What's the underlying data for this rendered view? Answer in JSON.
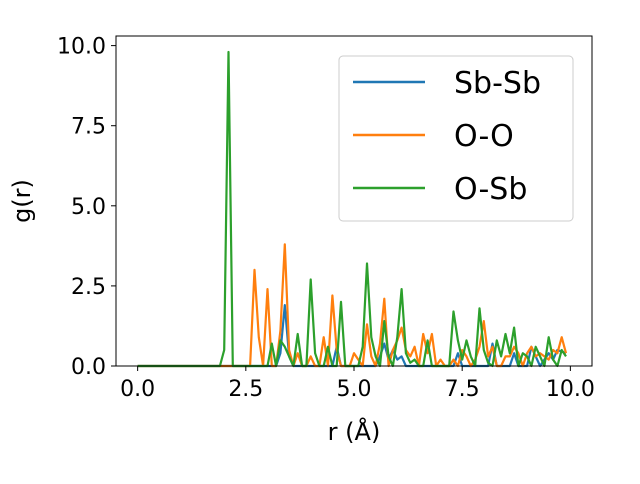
{
  "chart_data": {
    "type": "line",
    "xlabel": "r (Å)",
    "ylabel": "g(r)",
    "xlim": [
      -0.5,
      10.5
    ],
    "ylim": [
      0,
      10.3
    ],
    "xticks": [
      "0.0",
      "2.5",
      "5.0",
      "7.5",
      "10.0"
    ],
    "yticks": [
      "0.0",
      "2.5",
      "5.0",
      "7.5",
      "10.0"
    ],
    "grid": false,
    "legend_position": "top-right",
    "colors": {
      "Sb-Sb": "#1f77b4",
      "O-O": "#ff7f0e",
      "O-Sb": "#2ca02c"
    },
    "series": [
      {
        "name": "Sb-Sb",
        "x": [
          0,
          3.2,
          3.3,
          3.4,
          3.5,
          3.6,
          4.5,
          4.6,
          4.7,
          5.5,
          5.6,
          5.7,
          5.8,
          5.9,
          6.0,
          6.1,
          6.2,
          7.3,
          7.4,
          7.5,
          8.1,
          8.2,
          8.3,
          8.6,
          8.7,
          8.8,
          9.0,
          9.1,
          9.2,
          9.3,
          9.5,
          9.6,
          9.7,
          9.9
        ],
        "y": [
          0,
          0,
          0.4,
          1.9,
          0.3,
          0,
          0,
          0.6,
          0,
          0,
          0.3,
          0.7,
          0.2,
          0.5,
          0.2,
          0.3,
          0,
          0,
          0.4,
          0,
          0,
          0.7,
          0,
          0,
          0.4,
          0,
          0,
          0.6,
          0.3,
          0,
          0.4,
          0.2,
          0.5,
          0.4
        ]
      },
      {
        "name": "O-O",
        "x": [
          0,
          2.6,
          2.7,
          2.8,
          2.9,
          3.0,
          3.1,
          3.2,
          3.3,
          3.4,
          3.5,
          3.6,
          3.7,
          3.8,
          3.9,
          4.0,
          4.1,
          4.2,
          4.3,
          4.4,
          4.5,
          4.6,
          4.7,
          4.8,
          4.9,
          5.0,
          5.1,
          5.2,
          5.3,
          5.4,
          5.5,
          5.6,
          5.7,
          5.8,
          5.9,
          6.0,
          6.1,
          6.2,
          6.3,
          6.4,
          6.5,
          6.6,
          6.7,
          6.8,
          6.9,
          7.0,
          7.1,
          7.2,
          7.3,
          7.4,
          7.5,
          7.6,
          7.7,
          7.8,
          7.9,
          8.0,
          8.1,
          8.2,
          8.3,
          8.4,
          8.5,
          8.6,
          8.7,
          8.8,
          8.9,
          9.0,
          9.1,
          9.2,
          9.3,
          9.4,
          9.5,
          9.6,
          9.7,
          9.8,
          9.9
        ],
        "y": [
          0,
          0,
          3.0,
          0.9,
          0,
          2.4,
          0,
          0,
          1.1,
          3.8,
          0.5,
          0,
          0.4,
          0,
          0,
          0.3,
          0,
          0,
          0.9,
          0,
          2.2,
          0.5,
          0,
          0,
          0,
          0.4,
          0.2,
          0,
          1.3,
          0.3,
          0,
          0.7,
          2.1,
          0,
          0.5,
          0.8,
          1.2,
          0.5,
          0.3,
          0.6,
          0,
          1.0,
          0.4,
          1.0,
          0,
          0.2,
          0,
          0,
          0.2,
          0,
          0.5,
          0.3,
          0,
          0.2,
          0.6,
          1.4,
          0.3,
          0.6,
          0,
          0,
          0.3,
          0.3,
          0.6,
          0.4,
          0,
          0.4,
          0.6,
          0.3,
          0.4,
          0.3,
          0.2,
          0.5,
          0.4,
          0.9,
          0.4
        ]
      },
      {
        "name": "O-Sb",
        "x": [
          0,
          1.9,
          2.0,
          2.1,
          2.2,
          2.3,
          2.4,
          2.5,
          2.6,
          2.7,
          2.8,
          2.9,
          3.0,
          3.1,
          3.2,
          3.3,
          3.4,
          3.5,
          3.6,
          3.7,
          3.8,
          3.9,
          4.0,
          4.1,
          4.2,
          4.3,
          4.4,
          4.5,
          4.6,
          4.7,
          4.8,
          4.9,
          5.0,
          5.1,
          5.2,
          5.3,
          5.4,
          5.5,
          5.6,
          5.7,
          5.8,
          5.9,
          6.0,
          6.1,
          6.2,
          6.3,
          6.4,
          6.5,
          6.6,
          6.7,
          6.8,
          6.9,
          7.0,
          7.1,
          7.2,
          7.3,
          7.4,
          7.5,
          7.6,
          7.7,
          7.8,
          7.9,
          8.0,
          8.1,
          8.2,
          8.3,
          8.4,
          8.5,
          8.6,
          8.7,
          8.8,
          8.9,
          9.0,
          9.1,
          9.2,
          9.3,
          9.4,
          9.5,
          9.6,
          9.7,
          9.8,
          9.9
        ],
        "y": [
          0,
          0,
          0.5,
          9.8,
          0,
          0,
          0,
          0,
          0,
          0,
          0,
          0,
          0,
          0.7,
          0,
          0.8,
          0.6,
          0.3,
          0,
          1.0,
          0,
          0,
          2.7,
          0.4,
          0,
          0,
          0.6,
          0,
          0,
          2.0,
          0,
          0,
          0,
          0,
          0.6,
          3.2,
          0.9,
          0.3,
          0,
          1.4,
          0.3,
          0,
          0.9,
          2.4,
          0.4,
          0.1,
          0.2,
          0,
          0,
          0.8,
          0,
          0,
          0,
          0,
          0,
          1.7,
          0.8,
          0.2,
          0.8,
          0.3,
          0,
          1.8,
          0.5,
          0.1,
          0,
          0.8,
          0.3,
          1.0,
          0.4,
          1.2,
          0,
          0.4,
          0.3,
          0,
          0.6,
          0.3,
          0,
          0.9,
          0.2,
          0,
          0.5,
          0.3
        ]
      }
    ]
  }
}
